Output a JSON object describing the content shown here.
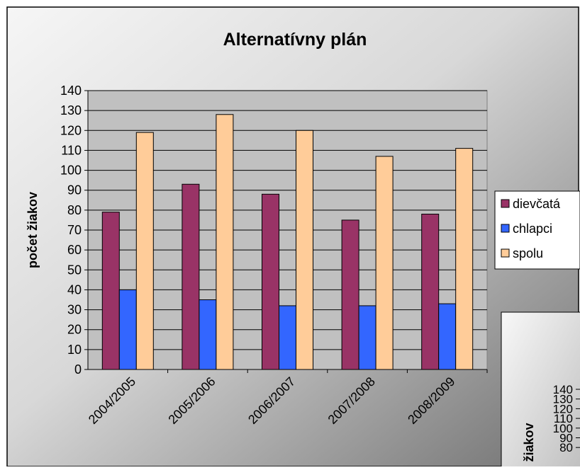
{
  "colors": {
    "background_light": "#f4f4f4",
    "background_dark": "#7a7a7a",
    "plot_area": "#c0c0c0",
    "gridline": "#000000",
    "series_dievcata": "#993366",
    "series_chlapci": "#3366ff",
    "series_spolu": "#ffcc99"
  },
  "chart_data": [
    {
      "type": "bar",
      "title": "Alternatívny plán",
      "xlabel": "",
      "ylabel": "počet žiakov",
      "categories": [
        "2004/2005",
        "2005/2006",
        "2006/2007",
        "2007/2008",
        "2008/2009"
      ],
      "series": [
        {
          "name": "dievčatá",
          "values": [
            79,
            93,
            88,
            75,
            78
          ]
        },
        {
          "name": "chlapci",
          "values": [
            40,
            35,
            32,
            32,
            33
          ]
        },
        {
          "name": "spolu",
          "values": [
            119,
            128,
            120,
            107,
            111
          ]
        }
      ],
      "ylim": [
        0,
        140
      ],
      "yticks": [
        "0",
        "10",
        "20",
        "30",
        "40",
        "50",
        "60",
        "70",
        "80",
        "90",
        "100",
        "110",
        "120",
        "130",
        "140"
      ],
      "grid": true,
      "legend_position": "right"
    },
    {
      "type": "bar",
      "note_visible": "partially visible second chart",
      "ylabel": "žiakov",
      "yticks": [
        "140",
        "130",
        "120",
        "110",
        "100",
        "90",
        "80"
      ]
    }
  ]
}
